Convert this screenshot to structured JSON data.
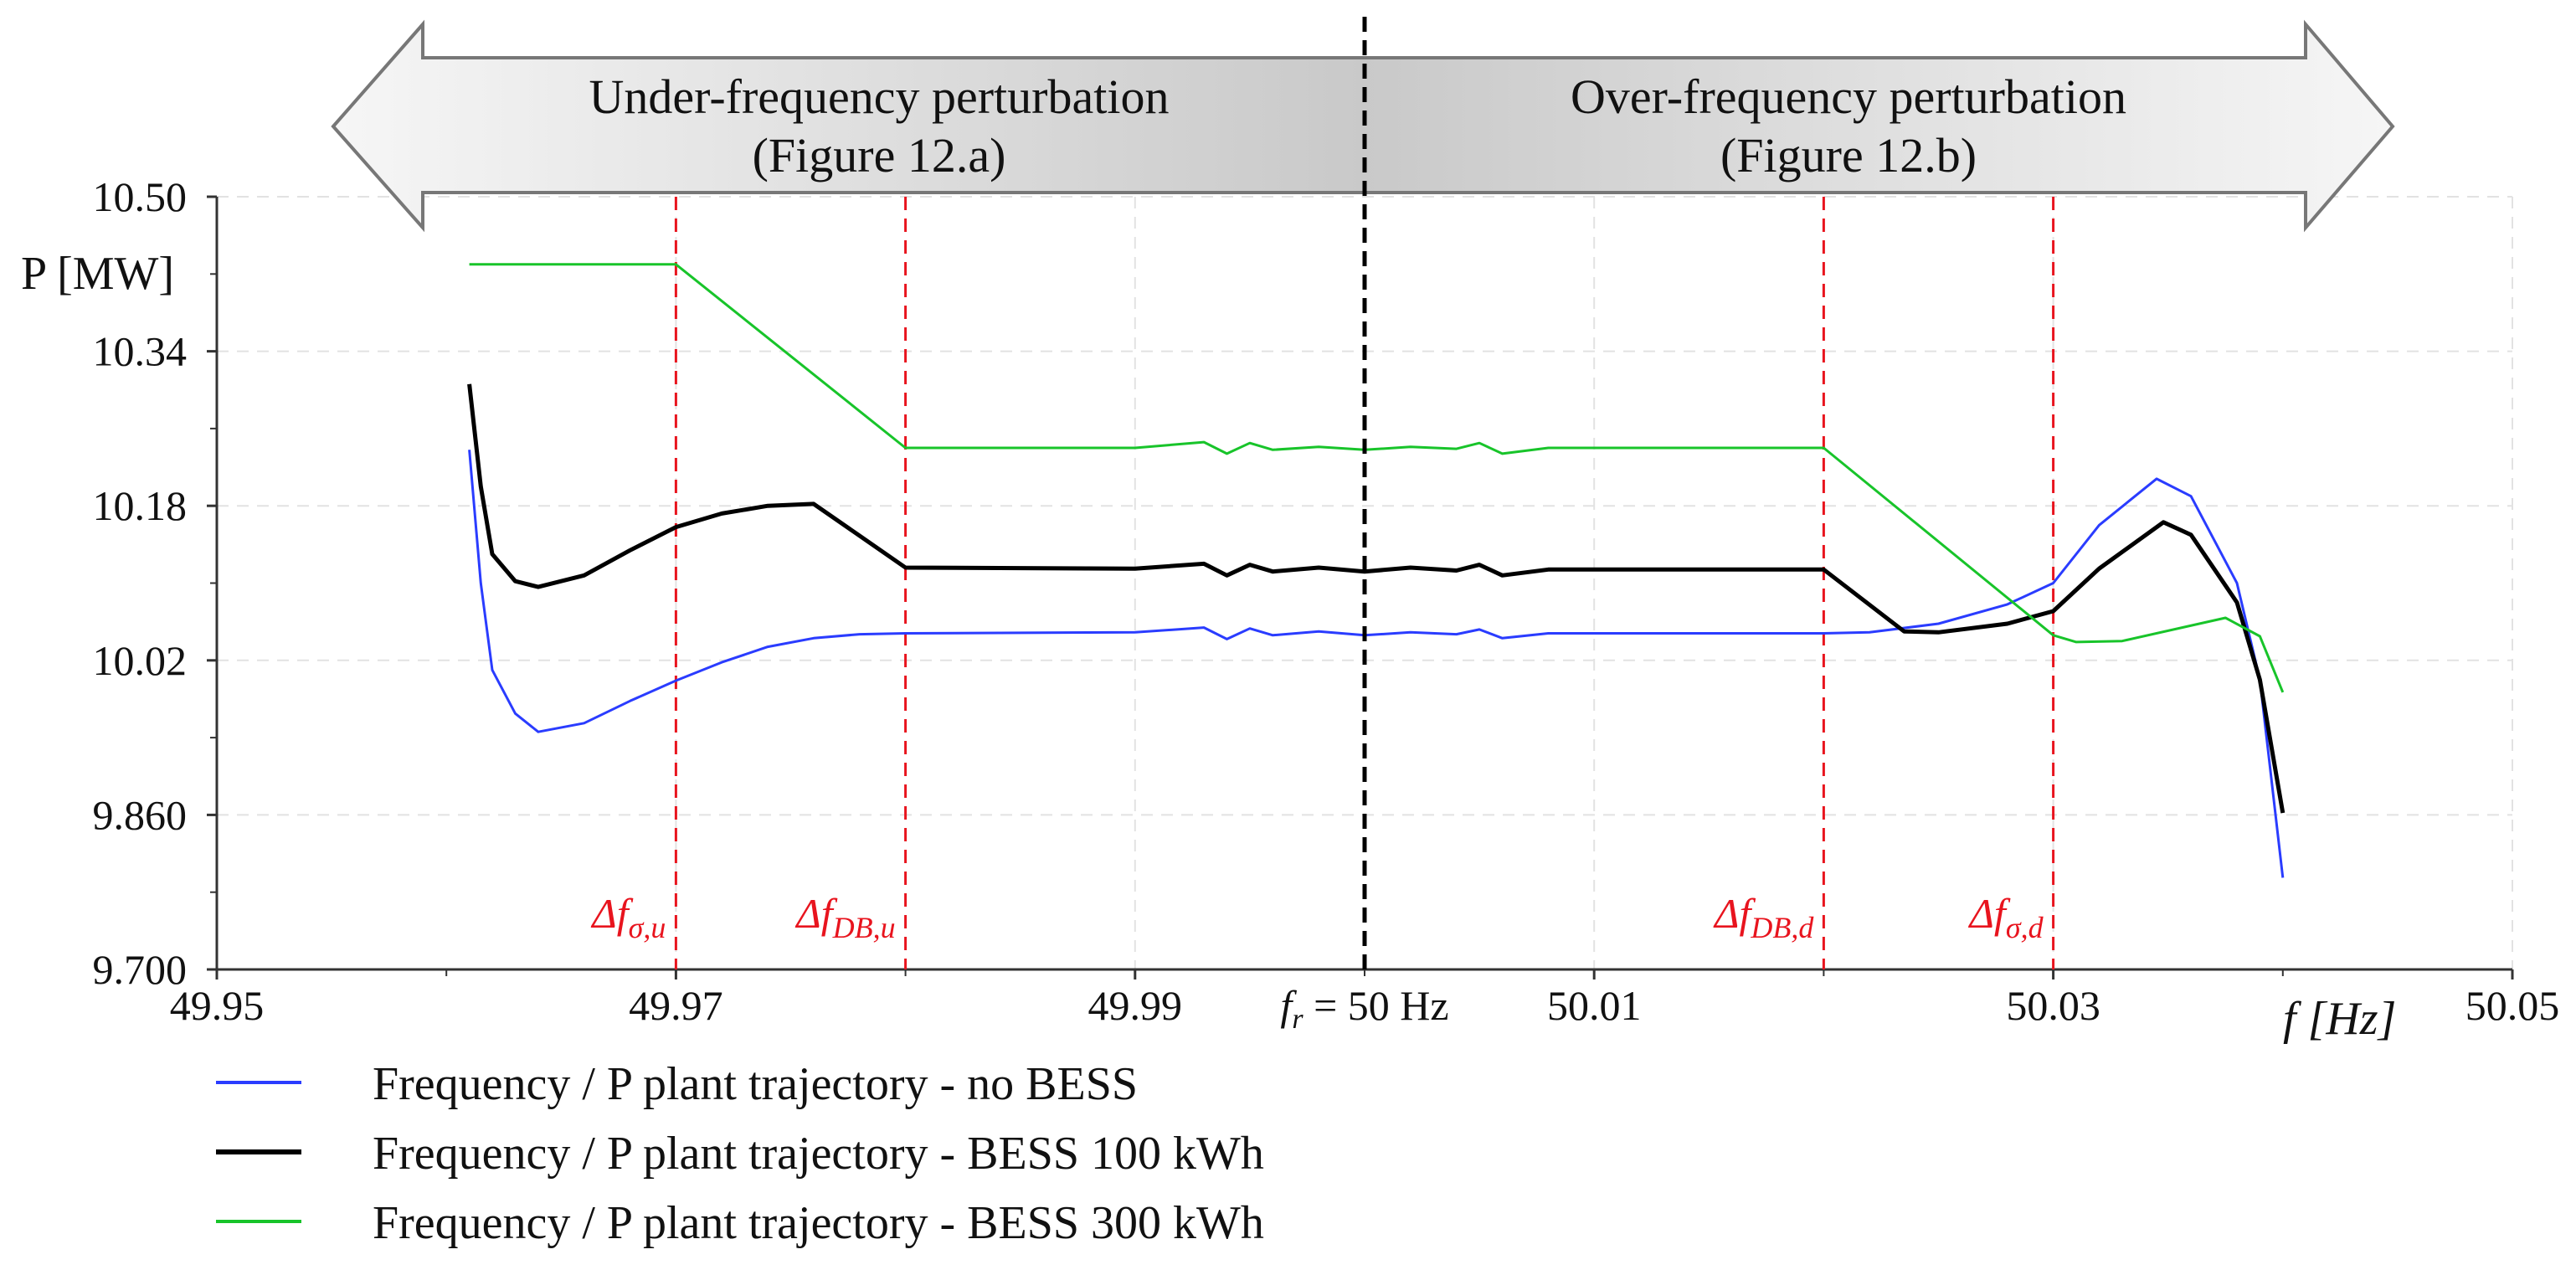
{
  "chart_data": {
    "type": "line",
    "title": "",
    "xlabel": "f [Hz]",
    "ylabel": "P [MW]",
    "xlim": [
      49.95,
      50.05
    ],
    "ylim": [
      9.7,
      10.5
    ],
    "x_ticks": [
      "49.95",
      "49.97",
      "49.99",
      "50.01",
      "50.03",
      "50.05"
    ],
    "x_tick_values": [
      49.95,
      49.97,
      49.99,
      50.01,
      50.03,
      50.05
    ],
    "y_ticks": [
      "10.50",
      "10.34",
      "10.18",
      "10.02",
      "9.860",
      "9.700"
    ],
    "y_tick_values": [
      10.5,
      10.34,
      10.18,
      10.02,
      9.86,
      9.7
    ],
    "grid": true,
    "legend_position": "bottom-left",
    "reference_line": {
      "x": 50.0,
      "label_main": "f",
      "label_sub": "r",
      "label_rest": " = 50 Hz",
      "color": "#000000"
    },
    "threshold_lines": [
      {
        "x": 49.97,
        "label_main": "Δf",
        "label_sub": "σ,u"
      },
      {
        "x": 49.98,
        "label_main": "Δf",
        "label_sub": "DB,u"
      },
      {
        "x": 50.02,
        "label_main": "Δf",
        "label_sub": "DB,d"
      },
      {
        "x": 50.03,
        "label_main": "Δf",
        "label_sub": "σ,d"
      }
    ],
    "threshold_color": "#e8141e",
    "regions": [
      {
        "direction": "left",
        "line1": "Under-frequency perturbation",
        "line2": "(Figure 12.a)"
      },
      {
        "direction": "right",
        "line1": "Over-frequency perturbation",
        "line2": "(Figure 12.b)"
      }
    ],
    "series": [
      {
        "name": "Frequency /  P plant trajectory - no BESS",
        "color": "#2a3cff",
        "x": [
          49.961,
          49.9615,
          49.962,
          49.963,
          49.964,
          49.966,
          49.968,
          49.97,
          49.972,
          49.974,
          49.976,
          49.978,
          49.98,
          49.99,
          49.993,
          49.994,
          49.995,
          49.996,
          49.998,
          50.0,
          50.002,
          50.004,
          50.005,
          50.006,
          50.008,
          50.01,
          50.02,
          50.022,
          50.025,
          50.028,
          50.03,
          50.032,
          50.0345,
          50.036,
          50.038,
          50.039,
          50.04
        ],
        "y": [
          10.238,
          10.1,
          10.01,
          9.965,
          9.946,
          9.955,
          9.978,
          9.999,
          10.018,
          10.034,
          10.043,
          10.047,
          10.048,
          10.049,
          10.054,
          10.042,
          10.053,
          10.046,
          10.05,
          10.046,
          10.049,
          10.047,
          10.052,
          10.043,
          10.048,
          10.048,
          10.048,
          10.049,
          10.058,
          10.078,
          10.1,
          10.16,
          10.208,
          10.19,
          10.1,
          10.0,
          9.795
        ]
      },
      {
        "name": "Frequency /  P plant trajectory - BESS 100 kWh",
        "color": "#000000",
        "x": [
          49.961,
          49.9615,
          49.962,
          49.963,
          49.964,
          49.966,
          49.968,
          49.97,
          49.972,
          49.974,
          49.976,
          49.98,
          49.99,
          49.993,
          49.994,
          49.995,
          49.996,
          49.998,
          50.0,
          50.002,
          50.004,
          50.005,
          50.006,
          50.008,
          50.01,
          50.02,
          50.0235,
          50.025,
          50.028,
          50.03,
          50.032,
          50.0348,
          50.036,
          50.038,
          50.039,
          50.04
        ],
        "y": [
          10.306,
          10.2,
          10.13,
          10.102,
          10.096,
          10.108,
          10.134,
          10.158,
          10.172,
          10.18,
          10.182,
          10.116,
          10.115,
          10.12,
          10.108,
          10.119,
          10.112,
          10.116,
          10.112,
          10.116,
          10.113,
          10.119,
          10.108,
          10.114,
          10.114,
          10.114,
          10.05,
          10.049,
          10.058,
          10.071,
          10.115,
          10.163,
          10.15,
          10.08,
          10.0,
          9.862
        ]
      },
      {
        "name": "Frequency /  P plant trajectory - BESS 300 kWh",
        "color": "#18c42a",
        "x": [
          49.961,
          49.97,
          49.98,
          49.99,
          49.993,
          49.994,
          49.995,
          49.996,
          49.998,
          50.0,
          50.002,
          50.004,
          50.005,
          50.006,
          50.008,
          50.01,
          50.02,
          50.03,
          50.031,
          50.033,
          50.0375,
          50.039,
          50.04
        ],
        "y": [
          10.43,
          10.43,
          10.24,
          10.24,
          10.246,
          10.234,
          10.245,
          10.238,
          10.241,
          10.238,
          10.241,
          10.239,
          10.245,
          10.234,
          10.24,
          10.24,
          10.24,
          10.046,
          10.039,
          10.04,
          10.064,
          10.045,
          9.987
        ]
      }
    ]
  }
}
